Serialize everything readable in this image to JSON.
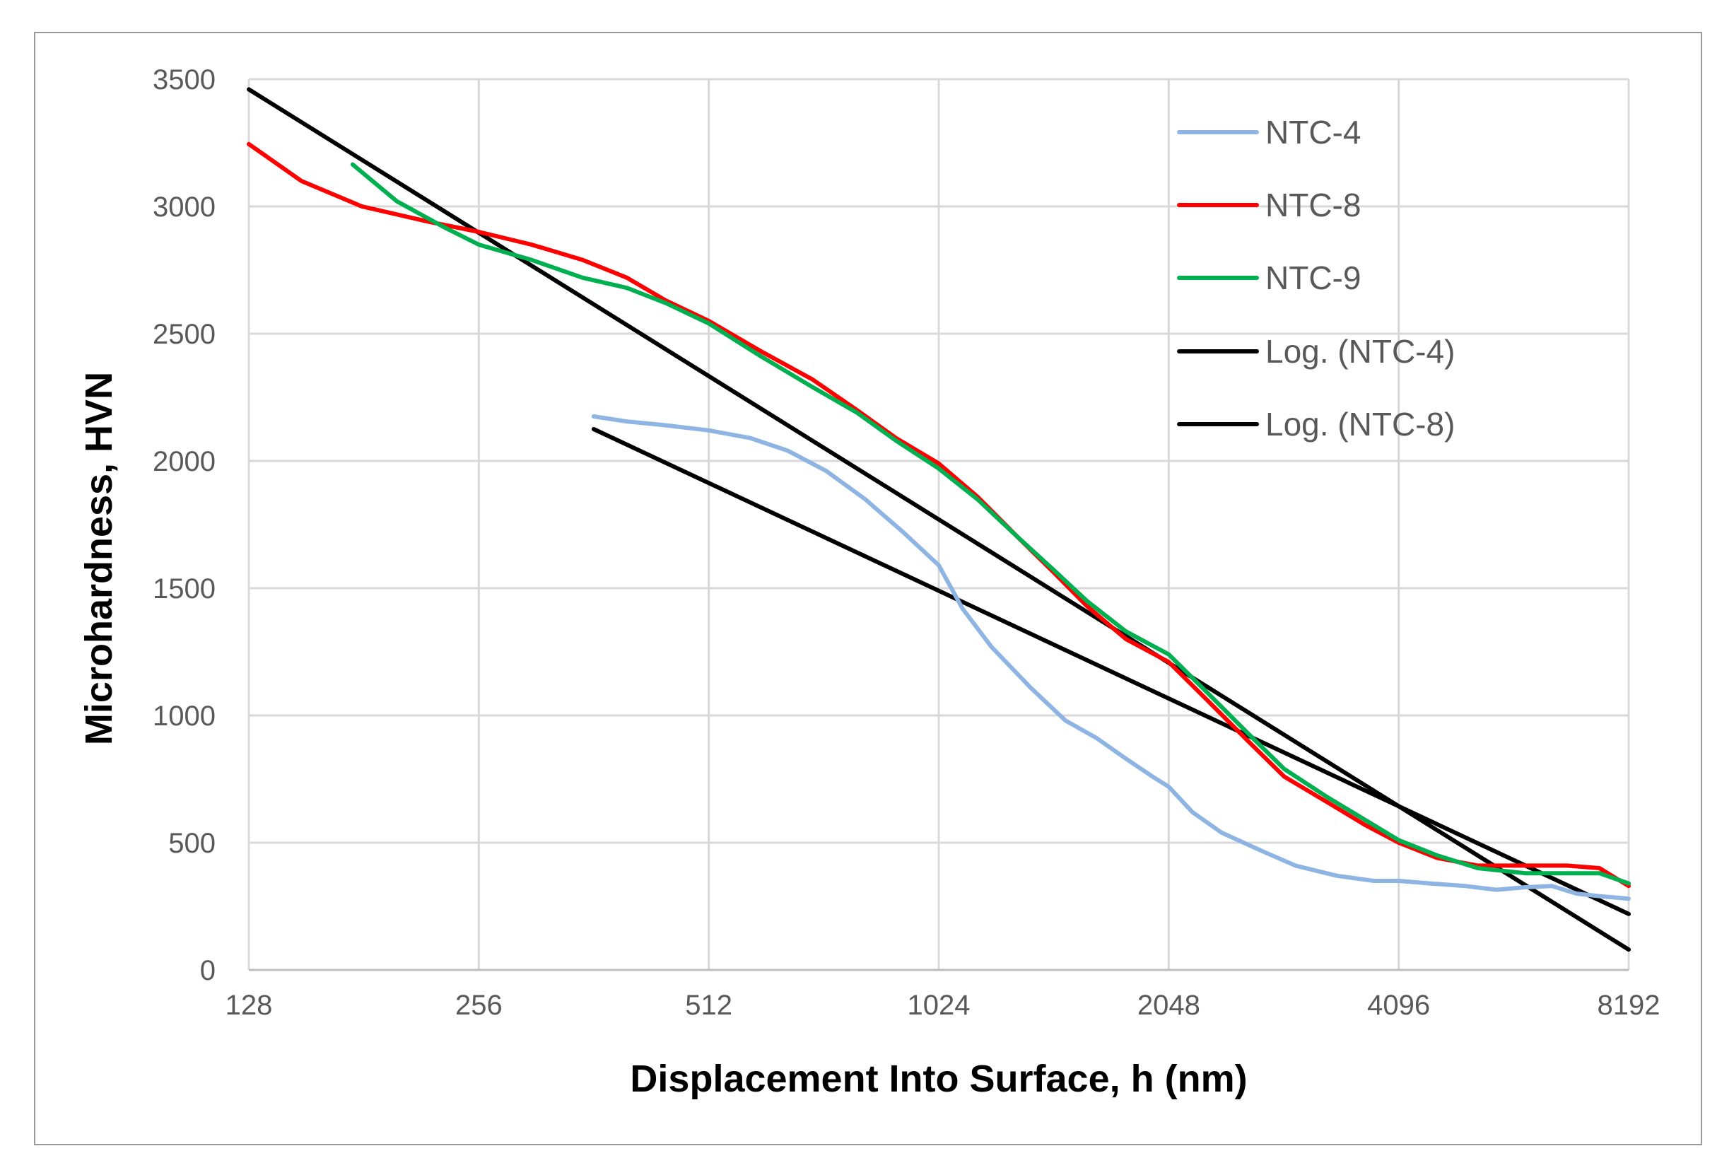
{
  "chart_data": {
    "type": "line",
    "title": "",
    "xlabel": "Displacement Into Surface, h (nm)",
    "ylabel": "Microhardness, HVN",
    "xscale": "log2",
    "xlim": [
      128,
      8192
    ],
    "ylim": [
      0,
      3500
    ],
    "x_ticks": [
      128,
      256,
      512,
      1024,
      2048,
      4096,
      8192
    ],
    "x_tick_labels": [
      "128",
      "256",
      "512",
      "1024",
      "2048",
      "4096",
      "8192"
    ],
    "y_ticks": [
      0,
      500,
      1000,
      1500,
      2000,
      2500,
      3000,
      3500
    ],
    "y_tick_labels": [
      "0",
      "500",
      "1000",
      "1500",
      "2000",
      "2500",
      "3000",
      "3500"
    ],
    "grid": true,
    "legend_position": "top-right",
    "series": [
      {
        "name": "NTC-4",
        "color": "#8EB4E3",
        "style": "solid",
        "x": [
          362,
          400,
          450,
          512,
          580,
          650,
          730,
          820,
          920,
          1024,
          1100,
          1200,
          1350,
          1500,
          1650,
          1800,
          1950,
          2048,
          2200,
          2400,
          2700,
          3000,
          3400,
          3800,
          4096,
          4500,
          5000,
          5500,
          6000,
          6500,
          7000,
          7500,
          8192
        ],
        "y": [
          2175,
          2155,
          2140,
          2120,
          2090,
          2040,
          1960,
          1850,
          1720,
          1590,
          1420,
          1270,
          1110,
          980,
          910,
          830,
          760,
          720,
          620,
          540,
          470,
          410,
          370,
          350,
          350,
          340,
          330,
          315,
          325,
          330,
          300,
          290,
          280
        ]
      },
      {
        "name": "NTC-8",
        "color": "#FF0000",
        "style": "solid",
        "x": [
          128,
          150,
          180,
          220,
          256,
          300,
          350,
          400,
          450,
          512,
          600,
          700,
          800,
          900,
          1024,
          1150,
          1300,
          1450,
          1600,
          1800,
          2048,
          2300,
          2600,
          2900,
          3300,
          3700,
          4096,
          4600,
          5200,
          6000,
          6800,
          7500,
          8192
        ],
        "y": [
          3245,
          3100,
          3000,
          2940,
          2900,
          2850,
          2790,
          2720,
          2630,
          2550,
          2430,
          2320,
          2200,
          2090,
          1990,
          1860,
          1700,
          1560,
          1430,
          1300,
          1210,
          1060,
          900,
          760,
          660,
          570,
          500,
          440,
          410,
          410,
          410,
          400,
          330
        ]
      },
      {
        "name": "NTC-9",
        "color": "#00B050",
        "style": "solid",
        "x": [
          175,
          200,
          230,
          256,
          300,
          350,
          400,
          450,
          512,
          600,
          700,
          800,
          900,
          1024,
          1150,
          1300,
          1450,
          1600,
          1800,
          2048,
          2300,
          2600,
          2900,
          3300,
          3700,
          4096,
          4600,
          5200,
          6000,
          6800,
          7500,
          8192
        ],
        "y": [
          3165,
          3020,
          2920,
          2850,
          2790,
          2720,
          2680,
          2620,
          2540,
          2410,
          2290,
          2190,
          2080,
          1970,
          1850,
          1700,
          1570,
          1450,
          1330,
          1240,
          1090,
          930,
          790,
          680,
          590,
          510,
          450,
          400,
          380,
          380,
          380,
          340
        ]
      },
      {
        "name": "Log. (NTC-4)",
        "color": "#000000",
        "style": "trendline",
        "x": [
          362,
          8192
        ],
        "y": [
          2125,
          220
        ]
      },
      {
        "name": "Log. (NTC-8)",
        "color": "#000000",
        "style": "trendline",
        "x": [
          128,
          8192
        ],
        "y": [
          3460,
          80
        ]
      }
    ]
  }
}
